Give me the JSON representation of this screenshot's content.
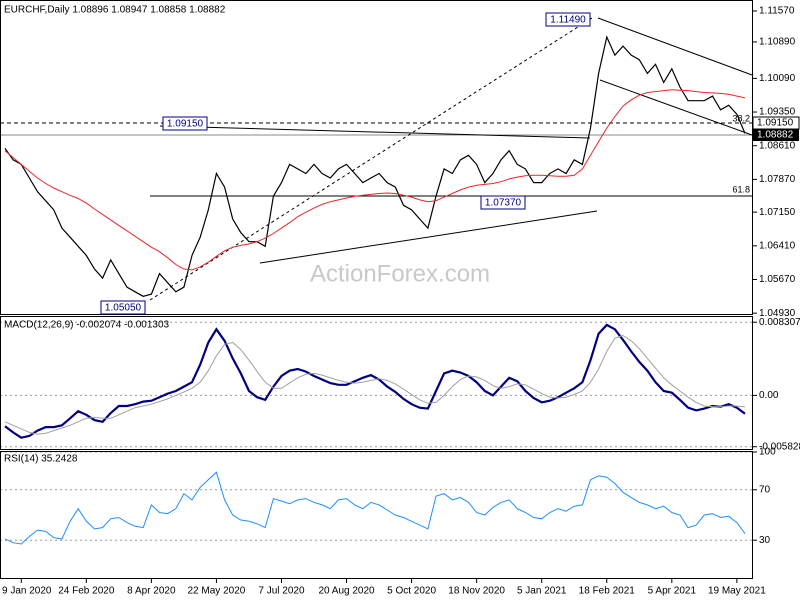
{
  "chart_data": [
    {
      "type": "line",
      "title": "EURCHF,Daily  1.08896 1.08947 1.08858 1.08882",
      "watermark": "ActionForex.com",
      "categories": [
        null,
        null,
        "9 Jan 2020",
        null,
        null,
        null,
        null,
        null,
        null,
        null,
        "24 Feb 2020",
        null,
        null,
        null,
        null,
        null,
        null,
        null,
        "8 Apr 2020",
        null,
        null,
        null,
        null,
        null,
        null,
        null,
        "22 May 2020",
        null,
        null,
        null,
        null,
        null,
        null,
        null,
        "7 Jul 2020",
        null,
        null,
        null,
        null,
        null,
        null,
        null,
        "20 Aug 2020",
        null,
        null,
        null,
        null,
        null,
        null,
        null,
        "5 Oct 2020",
        null,
        null,
        null,
        null,
        null,
        null,
        null,
        "18 Nov 2020",
        null,
        null,
        null,
        null,
        null,
        null,
        null,
        "5 Jan 2021",
        null,
        null,
        null,
        null,
        null,
        null,
        null,
        "18 Feb 2021",
        null,
        null,
        null,
        null,
        null,
        null,
        null,
        "5 Apr 2021",
        null,
        null,
        null,
        null,
        null,
        null,
        null,
        "19 May 2021",
        null
      ],
      "series": [
        {
          "color": "#000000",
          "values": [
            1.0855,
            1.083,
            1.082,
            1.079,
            1.076,
            1.074,
            1.072,
            1.068,
            1.066,
            1.064,
            1.062,
            1.059,
            1.057,
            1.061,
            1.058,
            1.055,
            1.054,
            1.053,
            1.0535,
            1.058,
            1.056,
            1.054,
            1.055,
            1.062,
            1.066,
            1.072,
            1.08,
            1.077,
            1.07,
            1.067,
            1.065,
            1.065,
            1.064,
            1.075,
            1.078,
            1.082,
            1.081,
            1.08,
            1.082,
            1.08,
            1.079,
            1.081,
            1.082,
            1.08,
            1.078,
            1.079,
            1.08,
            1.078,
            1.077,
            1.073,
            1.072,
            1.07,
            1.068,
            1.075,
            1.081,
            1.08,
            1.083,
            1.084,
            1.082,
            1.078,
            1.08,
            1.083,
            1.085,
            1.082,
            1.081,
            1.078,
            1.078,
            1.08,
            1.081,
            1.08,
            1.083,
            1.082,
            1.09,
            1.102,
            1.11,
            1.106,
            1.108,
            1.106,
            1.105,
            1.102,
            1.104,
            1.1,
            1.103,
            1.099,
            1.096,
            1.096,
            1.096,
            1.097,
            1.094,
            1.095,
            1.093,
            1.0888
          ]
        },
        {
          "color": "#e8272a",
          "values": [
            1.085,
            1.0835,
            1.082,
            1.0805,
            1.079,
            1.0778,
            1.0768,
            1.076,
            1.0752,
            1.0745,
            1.0735,
            1.0722,
            1.071,
            1.0698,
            1.0686,
            1.0674,
            1.0662,
            1.065,
            1.0638,
            1.0628,
            1.0615,
            1.06,
            1.059,
            1.0588,
            1.0595,
            1.0605,
            1.0618,
            1.063,
            1.0638,
            1.0642,
            1.0645,
            1.065,
            1.0658,
            1.0668,
            1.068,
            1.0692,
            1.0705,
            1.0715,
            1.0724,
            1.0732,
            1.0738,
            1.0742,
            1.0746,
            1.075,
            1.0752,
            1.0754,
            1.0756,
            1.0757,
            1.0756,
            1.0752,
            1.0748,
            1.0742,
            1.0738,
            1.074,
            1.0748,
            1.0756,
            1.0764,
            1.077,
            1.0774,
            1.0776,
            1.0778,
            1.0782,
            1.0788,
            1.0792,
            1.0795,
            1.0796,
            1.0796,
            1.0795,
            1.0794,
            1.0794,
            1.0796,
            1.081,
            1.084,
            1.087,
            1.09,
            1.0925,
            1.0948,
            1.0962,
            1.0972,
            1.0978,
            1.098,
            1.0982,
            1.0984,
            1.0983,
            1.0982,
            1.098,
            1.0978,
            1.0977,
            1.0976,
            1.0974,
            1.097,
            1.0966
          ]
        }
      ],
      "ylim": [
        1.0489,
        1.1179
      ],
      "yticks": [
        {
          "value": 1.1157,
          "label": "1.11570"
        },
        {
          "value": 1.1089,
          "label": "1.10890"
        },
        {
          "value": 1.1009,
          "label": "1.10090"
        },
        {
          "value": 1.0935,
          "label": "1.09350"
        },
        {
          "value": 1.0861,
          "label": "1.08610"
        },
        {
          "value": 1.0787,
          "label": "1.07870"
        },
        {
          "value": 1.0715,
          "label": "1.07150"
        },
        {
          "value": 1.0641,
          "label": "1.06410"
        },
        {
          "value": 1.0567,
          "label": "1.05670"
        },
        {
          "value": 1.0493,
          "label": "1.04930"
        }
      ],
      "grid": false,
      "annotations": [
        "1.11490",
        "1.09150",
        "1.07370",
        "1.05050",
        "38.2",
        "61.8"
      ],
      "price_tags": [
        "1.09150",
        "1.08882"
      ]
    },
    {
      "type": "line",
      "title": "MACD(12,26,9) -0.002074 -0.001303",
      "series": [
        {
          "color": "#000080",
          "values": [
            -0.0035,
            -0.0042,
            -0.0048,
            -0.0046,
            -0.004,
            -0.0036,
            -0.0036,
            -0.0034,
            -0.0026,
            -0.0018,
            -0.0022,
            -0.0028,
            -0.003,
            -0.002,
            -0.0012,
            -0.0012,
            -0.001,
            -0.0007,
            -0.0006,
            -0.0002,
            0.0002,
            0.0005,
            0.001,
            0.0015,
            0.0035,
            0.006,
            0.0075,
            0.0062,
            0.0042,
            0.0025,
            0.0005,
            -0.0002,
            -0.0005,
            0.001,
            0.0022,
            0.0028,
            0.003,
            0.0027,
            0.0022,
            0.0018,
            0.0014,
            0.0012,
            0.0012,
            0.0016,
            0.002,
            0.0023,
            0.0018,
            0.001,
            0.0004,
            -0.0004,
            -0.001,
            -0.0014,
            -0.0015,
            0.0005,
            0.0025,
            0.0028,
            0.0026,
            0.0022,
            0.0015,
            0.0005,
            0,
            0.001,
            0.002,
            0.0016,
            0.0005,
            -0.0003,
            -0.0008,
            -0.0006,
            -0.0002,
            0.0003,
            0.0008,
            0.0015,
            0.004,
            0.007,
            0.008,
            0.0075,
            0.0063,
            0.005,
            0.0038,
            0.0028,
            0.0015,
            0.0005,
            0.0003,
            -0.0005,
            -0.0014,
            -0.0017,
            -0.0015,
            -0.0012,
            -0.0013,
            -0.001,
            -0.0014,
            -0.002074
          ]
        },
        {
          "color": "#a0a0a0",
          "values": [
            -0.003,
            -0.0034,
            -0.0038,
            -0.0042,
            -0.0044,
            -0.0043,
            -0.004,
            -0.0037,
            -0.0034,
            -0.003,
            -0.0026,
            -0.0025,
            -0.0026,
            -0.0026,
            -0.0022,
            -0.0018,
            -0.0014,
            -0.0012,
            -0.001,
            -0.0007,
            -0.0004,
            0,
            0.0004,
            0.0008,
            0.0015,
            0.0028,
            0.0045,
            0.0058,
            0.006,
            0.0052,
            0.004,
            0.0027,
            0.0015,
            0.0008,
            0.0008,
            0.0014,
            0.002,
            0.0024,
            0.0025,
            0.0023,
            0.002,
            0.0017,
            0.0015,
            0.0014,
            0.0015,
            0.0017,
            0.0019,
            0.0017,
            0.0013,
            0.0007,
            0.0001,
            -0.0005,
            -0.0009,
            -0.0008,
            0,
            0.001,
            0.0018,
            0.0022,
            0.0021,
            0.0017,
            0.0011,
            0.0008,
            0.001,
            0.0013,
            0.0012,
            0.0007,
            0.0002,
            -0.0002,
            -0.0003,
            -0.0002,
            0.0001,
            0.0005,
            0.0015,
            0.003,
            0.005,
            0.0065,
            0.0068,
            0.0062,
            0.0053,
            0.0042,
            0.0031,
            0.002,
            0.0012,
            0.0005,
            -0.0002,
            -0.0008,
            -0.0012,
            -0.0013,
            -0.0013,
            -0.0012,
            -0.0012,
            -0.001303
          ]
        }
      ],
      "ylim": [
        -0.0062,
        0.0089
      ],
      "yticks": [
        0.008307,
        {
          "value": 0,
          "label": "0.00"
        },
        -0.005828
      ],
      "grid": true
    },
    {
      "type": "line",
      "title": "RSI(14) 35.2428",
      "series": [
        {
          "color": "#1e90ff",
          "values": [
            31,
            28,
            27,
            33,
            38,
            37,
            32,
            31,
            45,
            55,
            45,
            39,
            40,
            47,
            48,
            44,
            41,
            40,
            58,
            52,
            51,
            55,
            67,
            62,
            72,
            78,
            84,
            62,
            50,
            46,
            45,
            43,
            40,
            63,
            61,
            59,
            62,
            63,
            60,
            58,
            55,
            62,
            63,
            58,
            55,
            60,
            58,
            54,
            50,
            48,
            45,
            42,
            39,
            65,
            67,
            62,
            64,
            60,
            52,
            50,
            56,
            60,
            62,
            55,
            52,
            48,
            47,
            52,
            55,
            53,
            57,
            58,
            78,
            81,
            80,
            75,
            68,
            64,
            60,
            58,
            55,
            57,
            52,
            50,
            40,
            42,
            50,
            51,
            48,
            49,
            44,
            35.2428
          ]
        }
      ],
      "ylim": [
        0,
        100
      ],
      "yticks": [
        100,
        70,
        30
      ],
      "grid": true
    }
  ]
}
